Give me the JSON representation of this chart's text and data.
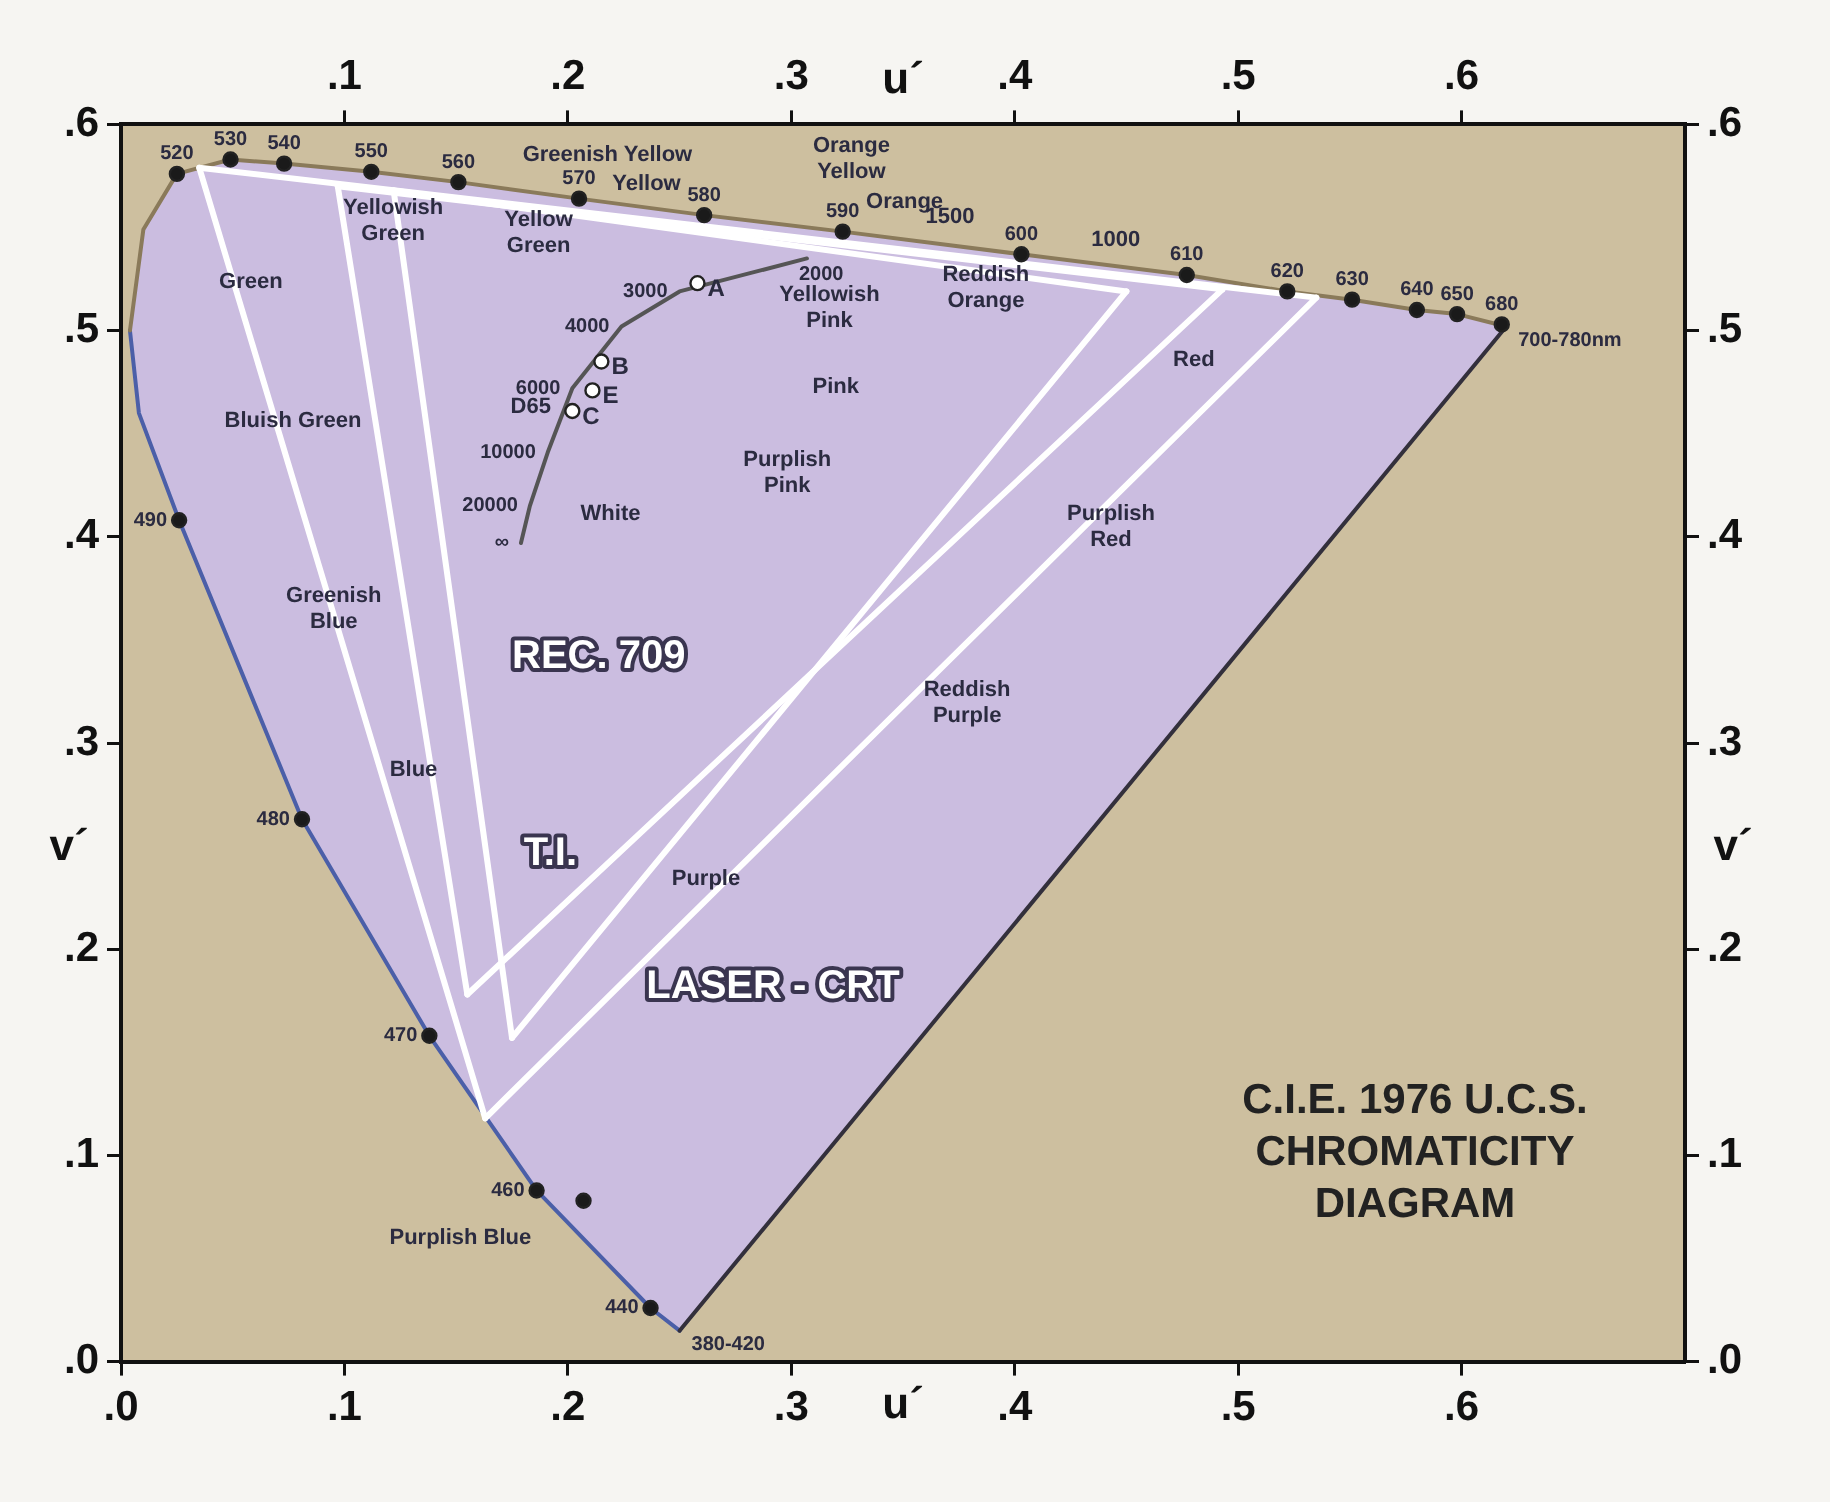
{
  "chart_data": {
    "type": "scatter",
    "title": "C.I.E. 1976 U.C.S. CHROMATICITY DIAGRAM",
    "xlabel": "u´",
    "ylabel": "v´",
    "x2label": "u´",
    "y2label": "v´",
    "xlim": [
      0,
      0.7
    ],
    "ylim": [
      0,
      0.6
    ],
    "x2lim": [
      0,
      0.7
    ],
    "y2lim": [
      0,
      0.6
    ],
    "xticks": [
      {
        "value": 0,
        "label": ".0"
      },
      {
        "value": 0.1,
        "label": ".1"
      },
      {
        "value": 0.2,
        "label": ".2"
      },
      {
        "value": 0.3,
        "label": ".3"
      },
      {
        "value": 0.4,
        "label": ".4"
      },
      {
        "value": 0.5,
        "label": ".5"
      },
      {
        "value": 0.6,
        "label": ".6"
      }
    ],
    "x2ticks": [
      {
        "value": 0.1,
        "label": ".1"
      },
      {
        "value": 0.2,
        "label": ".2"
      },
      {
        "value": 0.3,
        "label": ".3"
      },
      {
        "value": 0.4,
        "label": ".4"
      },
      {
        "value": 0.5,
        "label": ".5"
      },
      {
        "value": 0.6,
        "label": ".6"
      }
    ],
    "yticks": [
      {
        "value": 0,
        "label": ".0"
      },
      {
        "value": 0.1,
        "label": ".1"
      },
      {
        "value": 0.2,
        "label": ".2"
      },
      {
        "value": 0.3,
        "label": ".3"
      },
      {
        "value": 0.4,
        "label": ".4"
      },
      {
        "value": 0.5,
        "label": ".5"
      },
      {
        "value": 0.6,
        "label": ".6"
      }
    ],
    "y2ticks": [
      {
        "value": 0,
        "label": ".0"
      },
      {
        "value": 0.1,
        "label": ".1"
      },
      {
        "value": 0.2,
        "label": ".2"
      },
      {
        "value": 0.3,
        "label": ".3"
      },
      {
        "value": 0.4,
        "label": ".4"
      },
      {
        "value": 0.5,
        "label": ".5"
      },
      {
        "value": 0.6,
        "label": ".6"
      }
    ],
    "grid": false,
    "legend": false,
    "line_style": "solid",
    "series": [
      {
        "marker": "circle",
        "color": "#1a1a1a",
        "x": [
          0.025,
          0.049,
          0.073,
          0.112,
          0.151,
          0.205,
          0.261,
          0.323,
          0.403,
          0.477,
          0.522,
          0.551,
          0.58,
          0.598,
          0.618,
          0.026,
          0.081,
          0.138,
          0.186,
          0.237,
          0.207
        ],
        "values": [
          0.576,
          0.583,
          0.581,
          0.577,
          0.572,
          0.564,
          0.556,
          0.548,
          0.537,
          0.527,
          0.519,
          0.515,
          0.51,
          0.508,
          0.503,
          0.408,
          0.263,
          0.158,
          0.083,
          0.026,
          0.078
        ]
      },
      {
        "marker": "circle",
        "color": "#ffffff",
        "x": [
          0.202,
          0.211,
          0.215,
          0.258
        ],
        "values": [
          0.461,
          0.471,
          0.485,
          0.523
        ]
      },
      {
        "type": "line",
        "marker": "none",
        "color": "#4b5fa8",
        "x": [
          0.004,
          0.008,
          0.026,
          0.081,
          0.138,
          0.186,
          0.237,
          0.25
        ],
        "values": [
          0.5,
          0.46,
          0.408,
          0.263,
          0.158,
          0.083,
          0.026,
          0.015
        ]
      },
      {
        "type": "line",
        "marker": "none",
        "color": "#8a7a5a",
        "x": [
          0.004,
          0.01,
          0.025,
          0.049,
          0.073,
          0.112,
          0.151,
          0.205,
          0.261,
          0.323,
          0.403,
          0.477,
          0.522,
          0.551,
          0.58,
          0.598,
          0.62
        ],
        "values": [
          0.5,
          0.549,
          0.576,
          0.583,
          0.581,
          0.577,
          0.572,
          0.564,
          0.556,
          0.548,
          0.537,
          0.527,
          0.519,
          0.515,
          0.51,
          0.508,
          0.502
        ]
      },
      {
        "type": "line",
        "marker": "none",
        "color": "#33303c",
        "x": [
          0.25,
          0.62
        ],
        "values": [
          0.015,
          0.502
        ]
      },
      {
        "type": "line",
        "marker": "none",
        "color": "#555555",
        "x": [
          0.179,
          0.183,
          0.191,
          0.202,
          0.224,
          0.25,
          0.307
        ],
        "values": [
          0.397,
          0.415,
          0.441,
          0.472,
          0.502,
          0.519,
          0.535
        ]
      },
      {
        "type": "line",
        "marker": "none",
        "name": "REC. 709",
        "color": "#ffffff",
        "x": [
          0.122,
          0.175
        ],
        "values": [
          0.568,
          0.157
        ]
      },
      {
        "type": "line",
        "marker": "none",
        "color": "#ffffff",
        "x": [
          0.175,
          0.45
        ],
        "values": [
          0.157,
          0.519
        ]
      },
      {
        "type": "line",
        "marker": "none",
        "color": "#ffffff",
        "x": [
          0.122,
          0.45
        ],
        "values": [
          0.568,
          0.519
        ]
      },
      {
        "type": "line",
        "marker": "none",
        "color": "#ffffff",
        "x": [
          0.097,
          0.155
        ],
        "values": [
          0.57,
          0.178
        ]
      },
      {
        "type": "line",
        "marker": "none",
        "name": "T.I.",
        "color": "#ffffff",
        "x": [
          0.155,
          0.493
        ],
        "values": [
          0.178,
          0.52
        ]
      },
      {
        "type": "line",
        "marker": "none",
        "color": "#ffffff",
        "x": [
          0.097,
          0.493
        ],
        "values": [
          0.57,
          0.52
        ]
      },
      {
        "type": "line",
        "marker": "none",
        "color": "#ffffff",
        "x": [
          0.035,
          0.163
        ],
        "values": [
          0.579,
          0.118
        ]
      },
      {
        "type": "line",
        "marker": "none",
        "name": "LASER - CRT",
        "color": "#ffffff",
        "x": [
          0.163,
          0.535
        ],
        "values": [
          0.118,
          0.516
        ]
      },
      {
        "type": "line",
        "marker": "none",
        "color": "#ffffff",
        "x": [
          0.035,
          0.535
        ],
        "values": [
          0.579,
          0.516
        ]
      }
    ],
    "annotations": [
      {
        "text": "520",
        "x": 0.025,
        "y": 0.576
      },
      {
        "text": "530",
        "x": 0.049,
        "y": 0.583
      },
      {
        "text": "540",
        "x": 0.073,
        "y": 0.581
      },
      {
        "text": "550",
        "x": 0.112,
        "y": 0.577
      },
      {
        "text": "560",
        "x": 0.151,
        "y": 0.572
      },
      {
        "text": "570",
        "x": 0.205,
        "y": 0.564
      },
      {
        "text": "580",
        "x": 0.261,
        "y": 0.556
      },
      {
        "text": "590",
        "x": 0.323,
        "y": 0.548
      },
      {
        "text": "600",
        "x": 0.403,
        "y": 0.537
      },
      {
        "text": "610",
        "x": 0.477,
        "y": 0.527
      },
      {
        "text": "620",
        "x": 0.522,
        "y": 0.519
      },
      {
        "text": "630",
        "x": 0.551,
        "y": 0.515
      },
      {
        "text": "640",
        "x": 0.58,
        "y": 0.51
      },
      {
        "text": "650",
        "x": 0.598,
        "y": 0.508
      },
      {
        "text": "680",
        "x": 0.618,
        "y": 0.503
      },
      {
        "text": "490",
        "x": 0.026,
        "y": 0.408
      },
      {
        "text": "480",
        "x": 0.081,
        "y": 0.263
      },
      {
        "text": "470",
        "x": 0.138,
        "y": 0.158
      },
      {
        "text": "460",
        "x": 0.186,
        "y": 0.083
      },
      {
        "text": "440",
        "x": 0.237,
        "y": 0.026
      },
      {
        "text": "380-420",
        "x": 0.25,
        "y": 0.015
      },
      {
        "text": "700-780nm",
        "x": 0.62,
        "y": 0.502
      },
      {
        "text": "∞",
        "x": 0.179,
        "y": 0.397
      },
      {
        "text": "20000",
        "x": 0.183,
        "y": 0.415
      },
      {
        "text": "10000",
        "x": 0.191,
        "y": 0.441
      },
      {
        "text": "6000",
        "x": 0.202,
        "y": 0.472
      },
      {
        "text": "4000",
        "x": 0.224,
        "y": 0.502
      },
      {
        "text": "3000",
        "x": 0.25,
        "y": 0.519
      },
      {
        "text": "2000",
        "x": 0.307,
        "y": 0.535
      },
      {
        "text": "C",
        "x": 0.202,
        "y": 0.461
      },
      {
        "text": "E",
        "x": 0.211,
        "y": 0.471
      },
      {
        "text": "B",
        "x": 0.215,
        "y": 0.485
      },
      {
        "text": "A",
        "x": 0.258,
        "y": 0.523
      },
      "Greenish Yellow",
      "Yellow",
      "Yellowish\nGreen",
      "Yellow\nGreen",
      "Green",
      "Bluish Green",
      "Greenish\nBlue",
      "White",
      "D65",
      "Orange\nYellow",
      "Orange",
      "1500",
      "1000",
      "Yellowish\nPink",
      "Reddish\nOrange",
      "Pink",
      "Purplish\nPink",
      "Red",
      "Purplish\nRed",
      "Reddish\nPurple",
      "Blue",
      "Purple",
      "Purplish Blue"
    ]
  }
}
